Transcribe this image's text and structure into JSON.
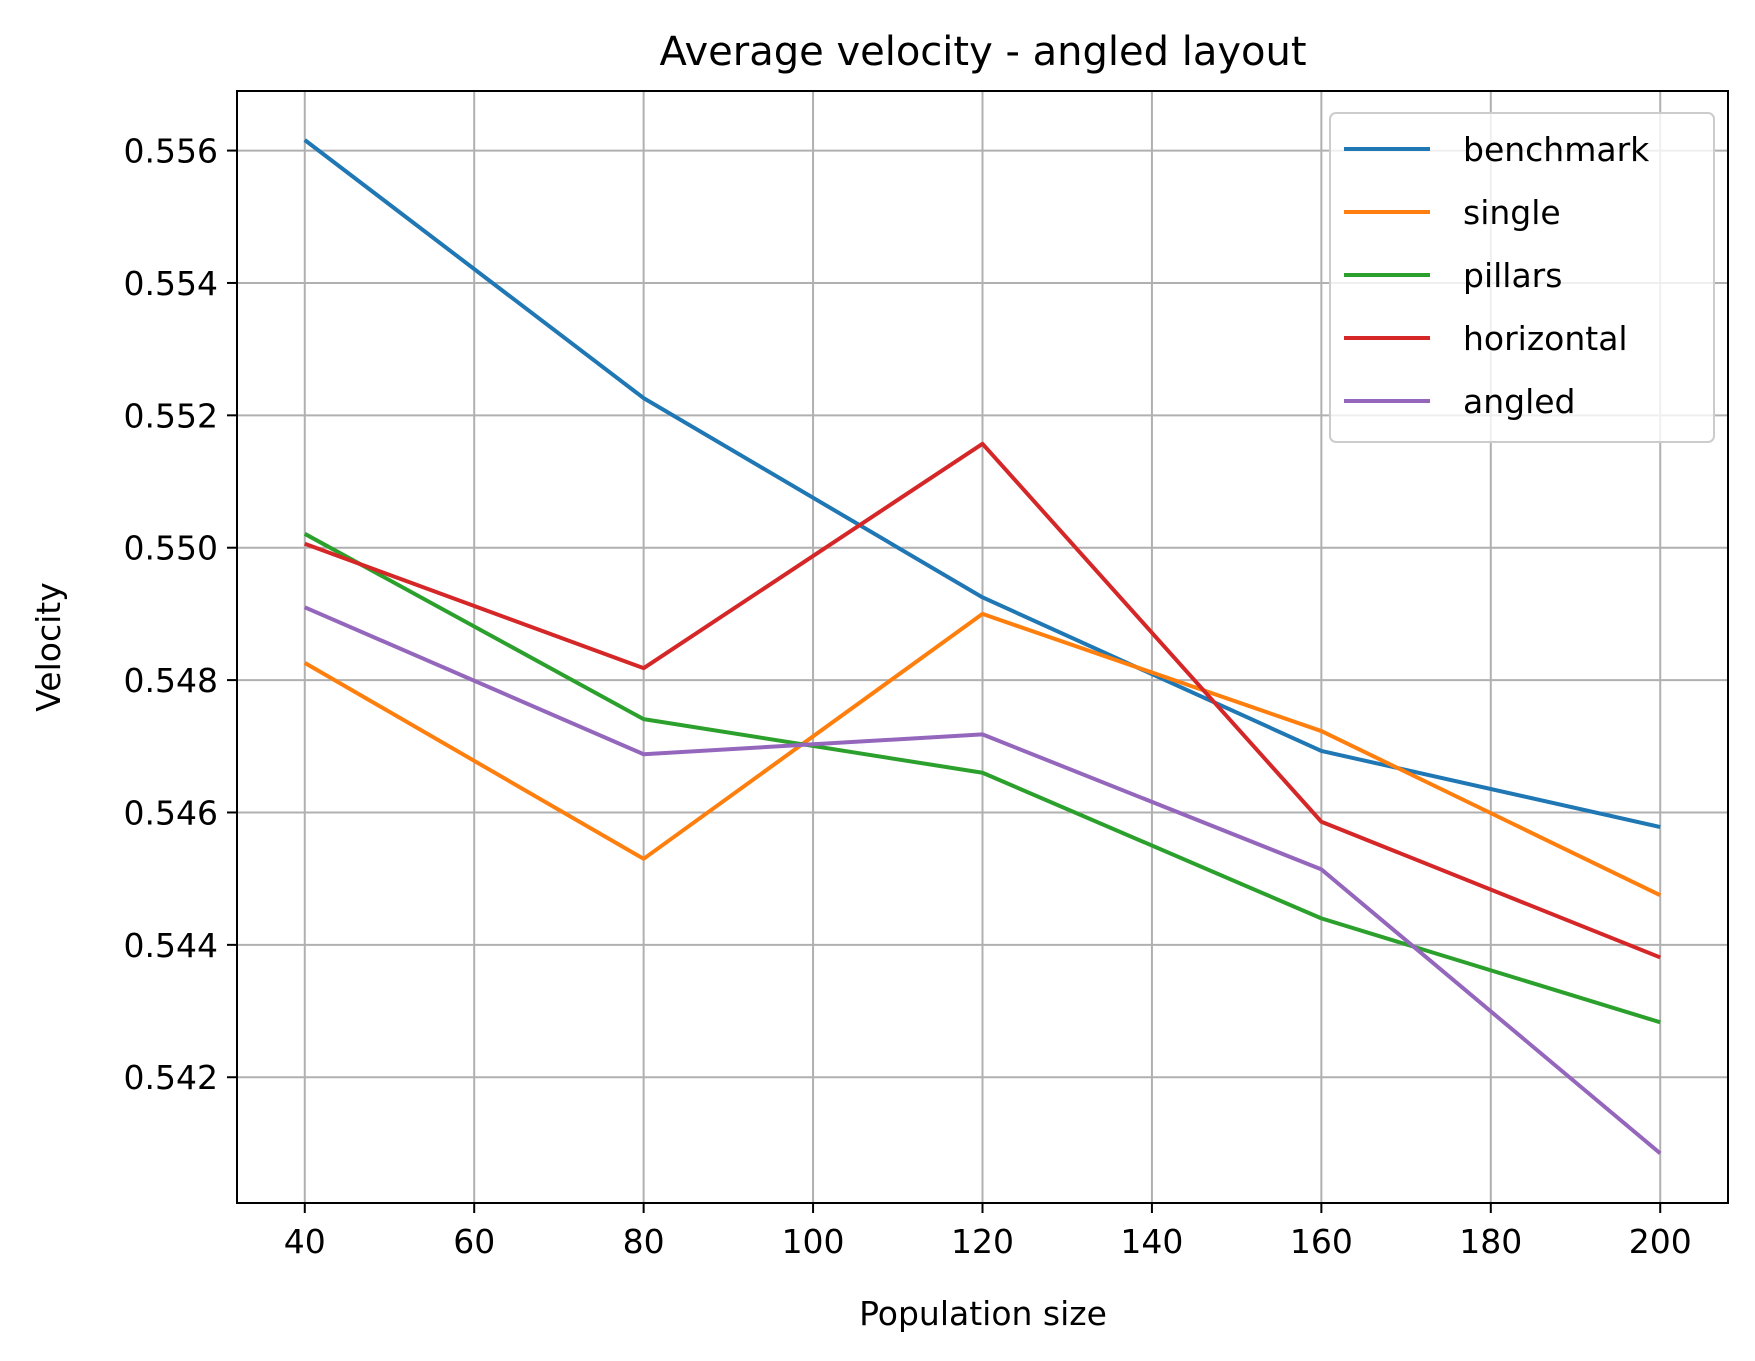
{
  "chart_data": {
    "type": "line",
    "title": "Average velocity - angled layout",
    "xlabel": "Population size",
    "ylabel": "Velocity",
    "x": [
      40,
      80,
      120,
      160,
      200
    ],
    "xticks": [
      40,
      60,
      80,
      100,
      120,
      140,
      160,
      180,
      200
    ],
    "xtick_labels": [
      "40",
      "60",
      "80",
      "100",
      "120",
      "140",
      "160",
      "180",
      "200"
    ],
    "yticks": [
      0.542,
      0.544,
      0.546,
      0.548,
      0.55,
      0.552,
      0.554,
      0.556
    ],
    "ytick_labels": [
      "0.542",
      "0.544",
      "0.546",
      "0.548",
      "0.550",
      "0.552",
      "0.554",
      "0.556"
    ],
    "xlim": [
      32,
      208
    ],
    "ylim": [
      0.5401,
      0.5569
    ],
    "grid": true,
    "legend_position": "top-right",
    "series": [
      {
        "name": "benchmark",
        "color": "#1f77b4",
        "values": [
          0.55616,
          0.55226,
          0.54925,
          0.54693,
          0.54578
        ]
      },
      {
        "name": "single",
        "color": "#ff7f0e",
        "values": [
          0.54826,
          0.5453,
          0.549,
          0.54723,
          0.54475
        ]
      },
      {
        "name": "pillars",
        "color": "#2ca02c",
        "values": [
          0.55021,
          0.54741,
          0.5466,
          0.5444,
          0.54283
        ]
      },
      {
        "name": "horizontal",
        "color": "#d62728",
        "values": [
          0.55006,
          0.54818,
          0.55157,
          0.54586,
          0.54381
        ]
      },
      {
        "name": "angled",
        "color": "#9467bd",
        "values": [
          0.5491,
          0.54688,
          0.54718,
          0.54514,
          0.54085
        ]
      }
    ]
  }
}
